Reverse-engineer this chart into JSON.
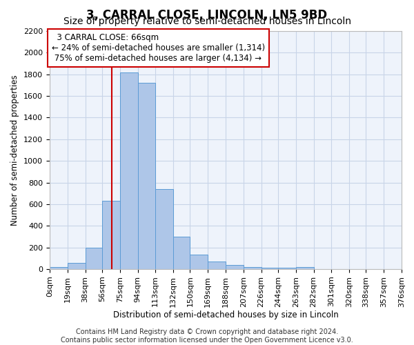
{
  "title": "3, CARRAL CLOSE, LINCOLN, LN5 9BD",
  "subtitle": "Size of property relative to semi-detached houses in Lincoln",
  "xlabel": "Distribution of semi-detached houses by size in Lincoln",
  "ylabel": "Number of semi-detached properties",
  "footer_line1": "Contains HM Land Registry data © Crown copyright and database right 2024.",
  "footer_line2": "Contains public sector information licensed under the Open Government Licence v3.0.",
  "property_label": "3 CARRAL CLOSE: 66sqm",
  "pct_smaller": 24,
  "n_smaller": 1314,
  "pct_larger": 75,
  "n_larger": 4134,
  "vline_x": 66,
  "bin_edges": [
    0,
    19,
    38,
    56,
    75,
    94,
    113,
    132,
    150,
    169,
    188,
    207,
    226,
    244,
    263,
    282,
    301,
    320,
    338,
    357,
    376
  ],
  "bin_labels": [
    "0sqm",
    "19sqm",
    "38sqm",
    "56sqm",
    "75sqm",
    "94sqm",
    "113sqm",
    "132sqm",
    "150sqm",
    "169sqm",
    "188sqm",
    "207sqm",
    "226sqm",
    "244sqm",
    "263sqm",
    "282sqm",
    "301sqm",
    "320sqm",
    "338sqm",
    "357sqm",
    "376sqm"
  ],
  "bar_heights": [
    20,
    55,
    200,
    630,
    1820,
    1720,
    740,
    300,
    135,
    70,
    40,
    20,
    15,
    15,
    20,
    0,
    0,
    0,
    0,
    0
  ],
  "bar_color": "#aec6e8",
  "bar_edge_color": "#5b9bd5",
  "vline_color": "#cc0000",
  "annotation_box_color": "#cc0000",
  "bg_color": "#eef3fb",
  "grid_color": "#c8d4e8",
  "ylim_max": 2200,
  "yticks": [
    0,
    200,
    400,
    600,
    800,
    1000,
    1200,
    1400,
    1600,
    1800,
    2000,
    2200
  ],
  "title_fontsize": 12,
  "subtitle_fontsize": 10,
  "axis_label_fontsize": 8.5,
  "tick_fontsize": 8,
  "annotation_fontsize": 8.5,
  "footer_fontsize": 7
}
